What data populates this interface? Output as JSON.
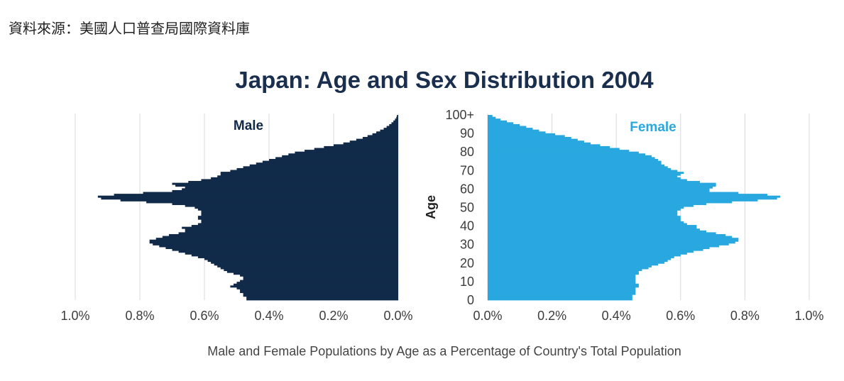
{
  "source_note": "資料來源：美國人口普查局國際資料庫",
  "colors": {
    "male": "#112a4a",
    "female": "#29a8e0",
    "title": "#1a2f4e",
    "grid": "#d9d9d9"
  },
  "chart_data": {
    "type": "bar",
    "orientation": "horizontal-pyramid",
    "title": "Japan: Age and Sex Distribution 2004",
    "xlabel": "Male and Female Populations by Age as a Percentage of Country's Total Population",
    "ylabel": "Age",
    "xlim": [
      0,
      1.0
    ],
    "male_ticks": [
      "1.0%",
      "0.8%",
      "0.6%",
      "0.4%",
      "0.2%",
      "0.0%"
    ],
    "female_ticks": [
      "0.0%",
      "0.2%",
      "0.4%",
      "0.6%",
      "0.8%",
      "1.0%"
    ],
    "age_ticks": [
      "0",
      "10",
      "20",
      "30",
      "40",
      "50",
      "60",
      "70",
      "80",
      "90",
      "100+"
    ],
    "grid": true,
    "series": [
      {
        "name": "Male",
        "color": "#112a4a",
        "values": [
          0.47,
          0.47,
          0.48,
          0.48,
          0.49,
          0.49,
          0.5,
          0.52,
          0.51,
          0.5,
          0.49,
          0.48,
          0.48,
          0.49,
          0.51,
          0.53,
          0.54,
          0.55,
          0.56,
          0.57,
          0.58,
          0.59,
          0.6,
          0.62,
          0.64,
          0.66,
          0.68,
          0.7,
          0.72,
          0.74,
          0.76,
          0.77,
          0.77,
          0.75,
          0.73,
          0.71,
          0.68,
          0.66,
          0.66,
          0.67,
          0.64,
          0.62,
          0.61,
          0.61,
          0.62,
          0.62,
          0.61,
          0.61,
          0.61,
          0.62,
          0.63,
          0.66,
          0.7,
          0.78,
          0.86,
          0.92,
          0.93,
          0.88,
          0.79,
          0.7,
          0.67,
          0.66,
          0.69,
          0.7,
          0.65,
          0.61,
          0.58,
          0.56,
          0.55,
          0.55,
          0.52,
          0.5,
          0.48,
          0.46,
          0.44,
          0.42,
          0.4,
          0.38,
          0.36,
          0.34,
          0.32,
          0.29,
          0.26,
          0.23,
          0.2,
          0.17,
          0.15,
          0.13,
          0.11,
          0.095,
          0.08,
          0.068,
          0.056,
          0.045,
          0.036,
          0.028,
          0.021,
          0.015,
          0.01,
          0.006,
          0.004
        ]
      },
      {
        "name": "Female",
        "color": "#29a8e0",
        "values": [
          0.45,
          0.45,
          0.45,
          0.46,
          0.46,
          0.46,
          0.46,
          0.47,
          0.47,
          0.46,
          0.46,
          0.46,
          0.46,
          0.46,
          0.47,
          0.47,
          0.48,
          0.5,
          0.51,
          0.53,
          0.55,
          0.56,
          0.57,
          0.58,
          0.6,
          0.62,
          0.64,
          0.67,
          0.69,
          0.72,
          0.75,
          0.77,
          0.78,
          0.78,
          0.76,
          0.74,
          0.71,
          0.68,
          0.66,
          0.65,
          0.65,
          0.62,
          0.61,
          0.6,
          0.6,
          0.6,
          0.59,
          0.59,
          0.59,
          0.6,
          0.61,
          0.64,
          0.68,
          0.76,
          0.84,
          0.9,
          0.91,
          0.87,
          0.78,
          0.69,
          0.69,
          0.7,
          0.71,
          0.71,
          0.66,
          0.62,
          0.6,
          0.59,
          0.6,
          0.61,
          0.59,
          0.57,
          0.56,
          0.55,
          0.54,
          0.54,
          0.53,
          0.52,
          0.51,
          0.49,
          0.47,
          0.44,
          0.41,
          0.38,
          0.35,
          0.32,
          0.3,
          0.28,
          0.26,
          0.24,
          0.21,
          0.18,
          0.16,
          0.14,
          0.12,
          0.1,
          0.08,
          0.06,
          0.04,
          0.025,
          0.015
        ]
      }
    ]
  }
}
